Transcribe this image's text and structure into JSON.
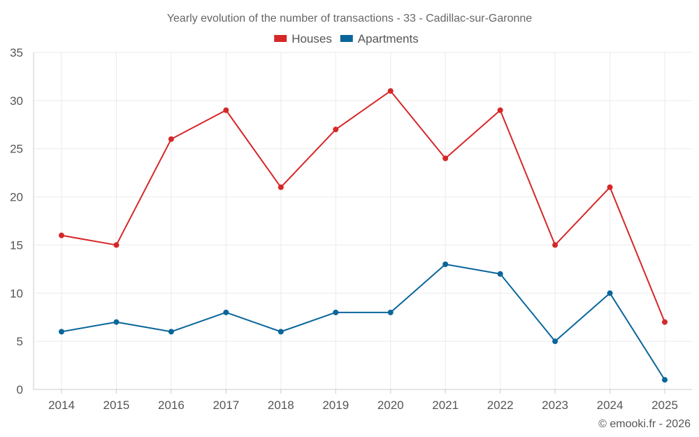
{
  "chart_data": {
    "type": "line",
    "title": "Yearly evolution of the number of transactions - 33 - Cadillac-sur-Garonne",
    "categories": [
      "2014",
      "2015",
      "2016",
      "2017",
      "2018",
      "2019",
      "2020",
      "2021",
      "2022",
      "2023",
      "2024",
      "2025"
    ],
    "series": [
      {
        "name": "Houses",
        "color": "#d62728",
        "values": [
          16,
          15,
          26,
          29,
          21,
          27,
          31,
          24,
          29,
          15,
          21,
          7
        ]
      },
      {
        "name": "Apartments",
        "color": "#09669a",
        "values": [
          6,
          7,
          6,
          8,
          6,
          8,
          8,
          13,
          12,
          5,
          10,
          1
        ]
      }
    ],
    "ylim": [
      0,
      35
    ],
    "yticks": [
      0,
      5,
      10,
      15,
      20,
      25,
      30,
      35
    ],
    "grid": true,
    "legend_position": "top-center",
    "xlabel": "",
    "ylabel": ""
  },
  "credit": "© emooki.fr - 2026"
}
